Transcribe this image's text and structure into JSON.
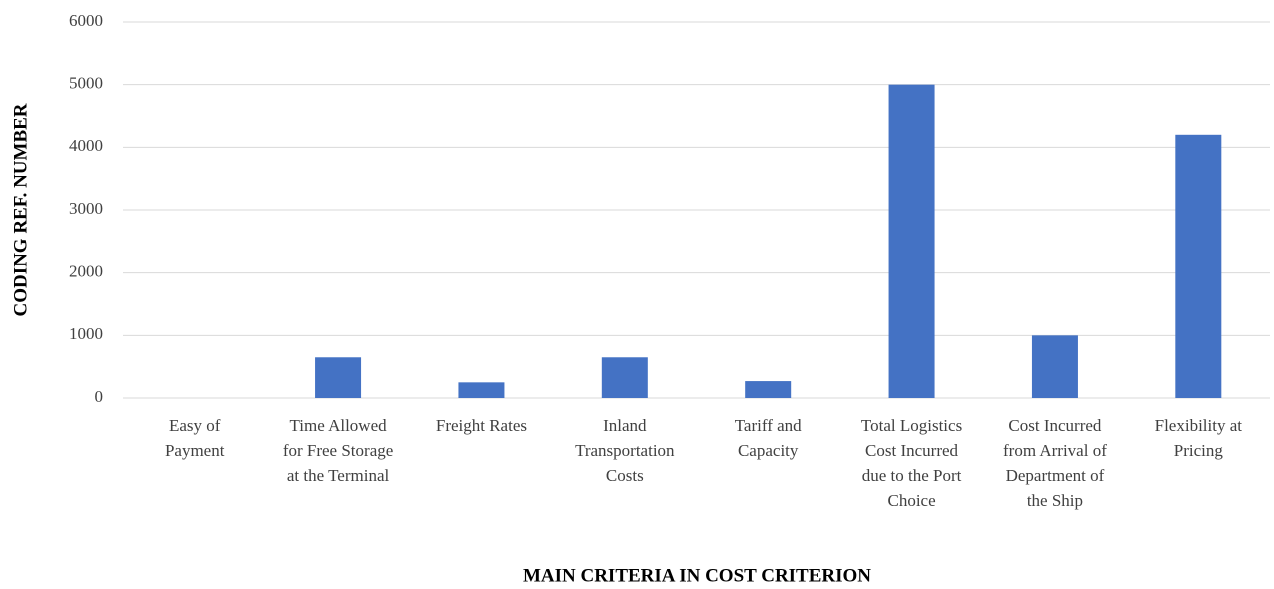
{
  "chart_data": {
    "type": "bar",
    "x_label": "MAIN CRITERIA IN COST CRITERION",
    "y_label": "CODING REF. NUMBER",
    "categories": [
      "Easy of\nPayment",
      "Time Allowed\nfor Free Storage\nat the Terminal",
      "Freight Rates",
      "Inland\nTransportation\nCosts",
      "Tariff and\nCapacity",
      "Total Logistics\nCost Incurred\ndue to the Port\nChoice",
      "Cost Incurred\nfrom Arrival of\nDepartment of\nthe Ship",
      "Flexibility at\nPricing"
    ],
    "values": [
      0,
      650,
      250,
      650,
      270,
      5000,
      1000,
      4200
    ],
    "color": "#4472c4",
    "ylim": [
      0,
      6000
    ],
    "yticks": [
      0,
      1000,
      2000,
      3000,
      4000,
      5000,
      6000
    ],
    "grid": true
  }
}
